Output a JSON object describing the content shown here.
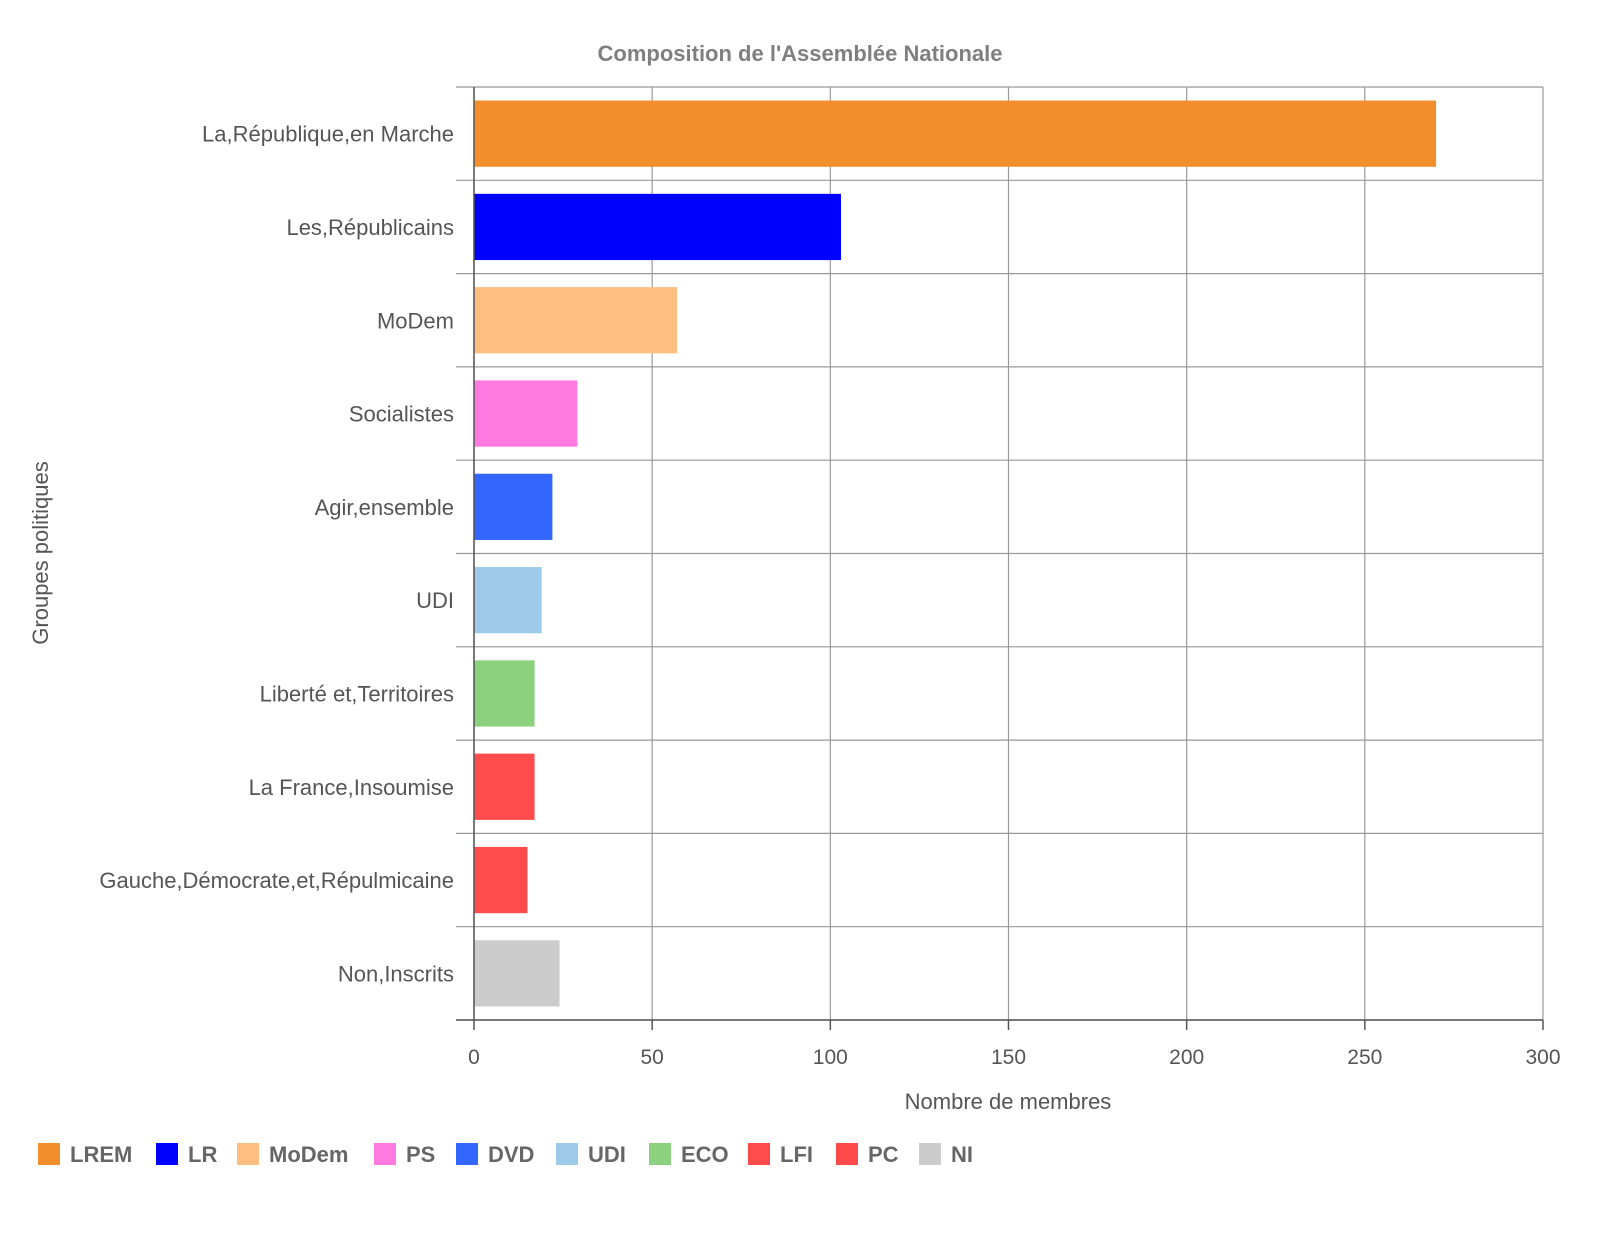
{
  "chart_data": {
    "type": "bar",
    "orientation": "horizontal",
    "title": "Composition de l'Assemblée Nationale",
    "xlabel": "Nombre de membres",
    "ylabel": "Groupes politiques",
    "xlim": [
      0,
      300
    ],
    "xticks": [
      0,
      50,
      100,
      150,
      200,
      250,
      300
    ],
    "grid": true,
    "legend_position": "bottom",
    "categories": [
      "La,République,en Marche",
      "Les,Républicains",
      "MoDem",
      "Socialistes",
      "Agir,ensemble",
      "UDI",
      "Liberté et,Territoires",
      "La France,Insoumise",
      "Gauche,Démocrate,et,Répulmicaine",
      "Non,Inscrits"
    ],
    "values": [
      270,
      103,
      57,
      29,
      22,
      19,
      17,
      17,
      15,
      24
    ],
    "bar_colors": [
      "#f28e2b",
      "#0000ff",
      "#ffbf80",
      "#ff7ae0",
      "#3366ff",
      "#9ecae9",
      "#8cd17d",
      "#ff4b4b",
      "#ff4b4b",
      "#cccccc"
    ],
    "legend": [
      {
        "label": "LREM",
        "color": "#f28e2b"
      },
      {
        "label": "LR",
        "color": "#0000ff"
      },
      {
        "label": "MoDem",
        "color": "#ffbf80"
      },
      {
        "label": "PS",
        "color": "#ff7ae0"
      },
      {
        "label": "DVD",
        "color": "#3366ff"
      },
      {
        "label": "UDI",
        "color": "#9ecae9"
      },
      {
        "label": "ECO",
        "color": "#8cd17d"
      },
      {
        "label": "LFI",
        "color": "#ff4b4b"
      },
      {
        "label": "PC",
        "color": "#ff4b4b"
      },
      {
        "label": "NI",
        "color": "#cccccc"
      }
    ]
  }
}
